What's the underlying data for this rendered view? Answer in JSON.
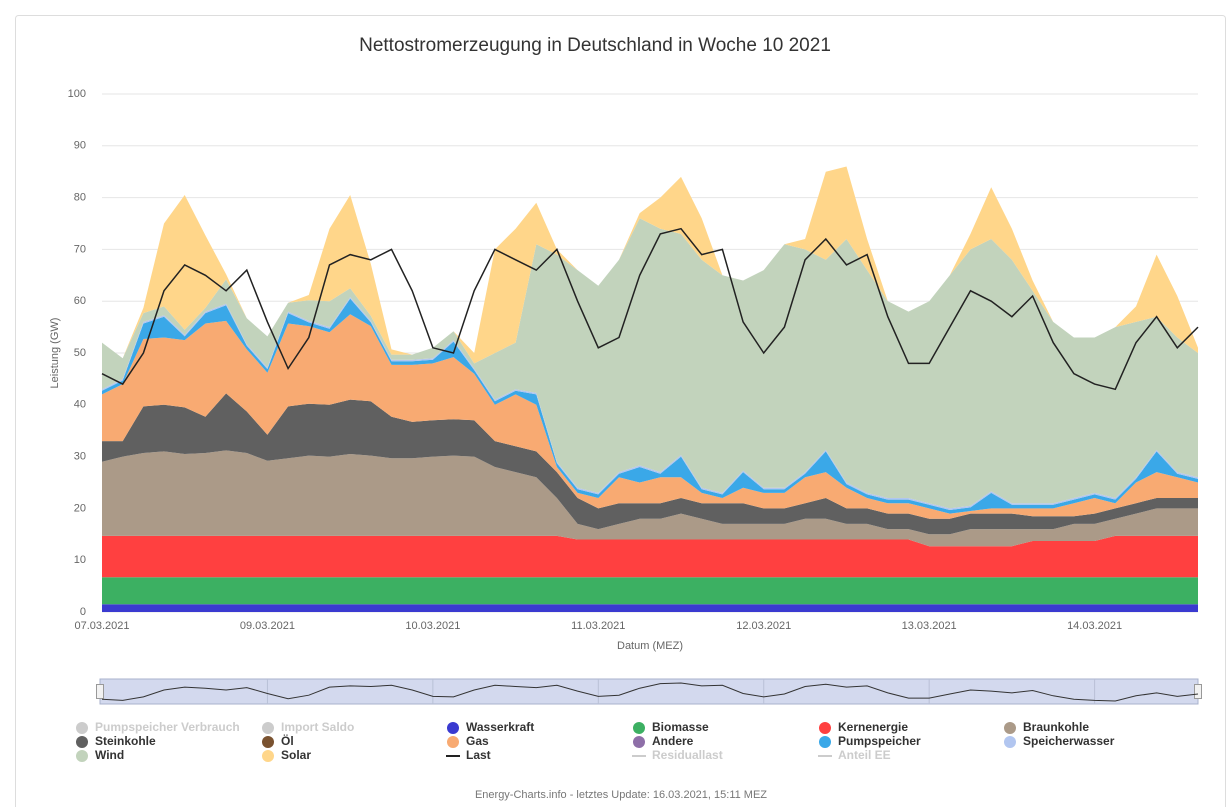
{
  "chart_data": {
    "type": "stacked_area",
    "title": "Nettostromerzeugung in Deutschland in Woche 10 2021",
    "y_label": "Leistung (GW)",
    "x_label": "Datum (MEZ)",
    "footer": "Energy-Charts.info - letztes Update: 16.03.2021, 15:11 MEZ",
    "ylim": [
      0,
      100
    ],
    "yticks": [
      0,
      10,
      20,
      30,
      40,
      50,
      60,
      70,
      80,
      90,
      100
    ],
    "grid": true,
    "categories": [
      "07.03.2021",
      null,
      null,
      null,
      null,
      null,
      null,
      null,
      "09.03.2021",
      null,
      null,
      null,
      null,
      null,
      null,
      null,
      "10.03.2021",
      null,
      null,
      null,
      null,
      null,
      null,
      null,
      "11.03.2021",
      null,
      null,
      null,
      null,
      null,
      null,
      null,
      "12.03.2021",
      null,
      null,
      null,
      null,
      null,
      null,
      null,
      "13.03.2021",
      null,
      null,
      null,
      null,
      null,
      null,
      null,
      "14.03.2021",
      null,
      null,
      null,
      null,
      null
    ],
    "series": [
      {
        "name": "Pumpspeicher Verbrauch",
        "color": "#cccccc",
        "visible": false
      },
      {
        "name": "Import Saldo",
        "color": "#cccccc",
        "visible": false
      },
      {
        "name": "Wasserkraft",
        "color": "#3a3ad0",
        "values": [
          1.5,
          1.5,
          1.5,
          1.5,
          1.5,
          1.5,
          1.5,
          1.5,
          1.5,
          1.5,
          1.5,
          1.5,
          1.5,
          1.5,
          1.5,
          1.5,
          1.5,
          1.5,
          1.5,
          1.5,
          1.5,
          1.5,
          1.5,
          1.5,
          1.5,
          1.5,
          1.5,
          1.5,
          1.5,
          1.5,
          1.5,
          1.5,
          1.5,
          1.5,
          1.5,
          1.5,
          1.5,
          1.5,
          1.5,
          1.5,
          1.5,
          1.5,
          1.5,
          1.5,
          1.5,
          1.5,
          1.5,
          1.5,
          1.5,
          1.5,
          1.5,
          1.5,
          1.5,
          1.5
        ]
      },
      {
        "name": "Biomasse",
        "color": "#3cb062",
        "values": [
          5.2,
          5.2,
          5.2,
          5.2,
          5.2,
          5.2,
          5.2,
          5.2,
          5.2,
          5.2,
          5.2,
          5.2,
          5.2,
          5.2,
          5.2,
          5.2,
          5.2,
          5.2,
          5.2,
          5.2,
          5.2,
          5.2,
          5.2,
          5.2,
          5.2,
          5.2,
          5.2,
          5.2,
          5.2,
          5.2,
          5.2,
          5.2,
          5.2,
          5.2,
          5.2,
          5.2,
          5.2,
          5.2,
          5.2,
          5.2,
          5.2,
          5.2,
          5.2,
          5.2,
          5.2,
          5.2,
          5.2,
          5.2,
          5.2,
          5.2,
          5.2,
          5.2,
          5.2,
          5.2
        ]
      },
      {
        "name": "Kernenergie",
        "color": "#ff4040",
        "values": [
          8,
          8,
          8,
          8,
          8,
          8,
          8,
          8,
          8,
          8,
          8,
          8,
          8,
          8,
          8,
          8,
          8,
          8,
          8,
          8,
          8,
          8,
          8,
          7.3,
          7.3,
          7.3,
          7.3,
          7.3,
          7.3,
          7.3,
          7.3,
          7.3,
          7.3,
          7.3,
          7.3,
          7.3,
          7.3,
          7.3,
          7.3,
          7.3,
          6,
          6,
          6,
          6,
          6,
          7,
          7,
          7,
          7,
          8,
          8,
          8,
          8,
          8
        ]
      },
      {
        "name": "Braunkohle",
        "color": "#ab9a88",
        "values": [
          14.3,
          15.3,
          16,
          16.3,
          15.8,
          16,
          16.5,
          16,
          14.5,
          15,
          15.5,
          15.3,
          15.8,
          15.5,
          15,
          15,
          15.3,
          15.5,
          15.3,
          13.3,
          12.3,
          11.3,
          7.3,
          3,
          2,
          3,
          4,
          4,
          5,
          4,
          3,
          3,
          3,
          3,
          4,
          4,
          3,
          3,
          2,
          2,
          2.3,
          2.3,
          3.3,
          3.3,
          3.3,
          2.3,
          2.3,
          3.3,
          3.3,
          3.3,
          4.3,
          5.3,
          5.3,
          5.3
        ]
      },
      {
        "name": "Steinkohle",
        "color": "#606060",
        "values": [
          4,
          3,
          9,
          9,
          9,
          7,
          11,
          8,
          5,
          10,
          10,
          10,
          10.5,
          10.5,
          8,
          7,
          7,
          7,
          7,
          5,
          5,
          5,
          5,
          5,
          4,
          4,
          3,
          3,
          3,
          3,
          4,
          4,
          3,
          3,
          3,
          4,
          3,
          3,
          3,
          3,
          3,
          3,
          3,
          3,
          3,
          2.5,
          2.5,
          1.5,
          2,
          2,
          2,
          2,
          2,
          2
        ]
      },
      {
        "name": "Öl",
        "color": "#7a5230"
      },
      {
        "name": "Gas",
        "color": "#f8aa72",
        "values": [
          9,
          11,
          13,
          13,
          13,
          18,
          14,
          12,
          12,
          16,
          15,
          14,
          16.5,
          14.5,
          10,
          11,
          11,
          12,
          9,
          7,
          10,
          9,
          1,
          1,
          2,
          5,
          4,
          5,
          4,
          2,
          1,
          3,
          3,
          3,
          5,
          5,
          4,
          2,
          2,
          2,
          2,
          1,
          0.5,
          1,
          1,
          1.5,
          1.5,
          2.5,
          3,
          1,
          4,
          5,
          4,
          3
        ]
      },
      {
        "name": "Andere",
        "color": "#8e6fa8"
      },
      {
        "name": "Pumpspeicher",
        "color": "#3aa8e8",
        "values": [
          0.7,
          0.7,
          3,
          4,
          0.7,
          2,
          3,
          0.7,
          0.7,
          2,
          0.7,
          0.7,
          3,
          0.7,
          0.7,
          0.7,
          0.7,
          3,
          0.7,
          0.7,
          0.7,
          2,
          0.7,
          0.7,
          0.7,
          0.7,
          3,
          0.7,
          4,
          0.7,
          0.7,
          3,
          0.7,
          0.7,
          0.7,
          4,
          0.7,
          0.7,
          0.7,
          0.7,
          0.7,
          0.7,
          0.7,
          3,
          0.7,
          0.7,
          0.7,
          0.7,
          0.7,
          0.7,
          0.7,
          4,
          0.7,
          0.7
        ]
      },
      {
        "name": "Speicherwasser",
        "color": "#b2c6f0",
        "values": [
          0.3,
          0.3,
          0.3,
          0.3,
          0.3,
          0.3,
          0.3,
          0.3,
          0.3,
          0.3,
          0.3,
          0.3,
          0.3,
          0.3,
          0.3,
          0.3,
          0.3,
          0.3,
          0.3,
          0.3,
          0.3,
          0.3,
          0.3,
          0.3,
          0.3,
          0.3,
          0.3,
          0.3,
          0.3,
          0.3,
          0.3,
          0.3,
          0.3,
          0.3,
          0.3,
          0.3,
          0.3,
          0.3,
          0.3,
          0.3,
          0.3,
          0.3,
          0.3,
          0.3,
          0.3,
          0.3,
          0.3,
          0.3,
          0.3,
          0.3,
          0.3,
          0.3,
          0.3,
          0.3
        ]
      },
      {
        "name": "Wind",
        "color": "#c2d3bc",
        "values": [
          9,
          4,
          1.7,
          1.7,
          1,
          0.7,
          4.7,
          5,
          6,
          1.7,
          4,
          5,
          1.7,
          1,
          1,
          1,
          2,
          1.7,
          1,
          9,
          9,
          28.7,
          40,
          42,
          40,
          41,
          47.7,
          47,
          42.7,
          44,
          42,
          36.7,
          42,
          47,
          43,
          36.7,
          47,
          43,
          38,
          36,
          39,
          45,
          49.5,
          48.7,
          47,
          41,
          35,
          31,
          30,
          33,
          30,
          25.7,
          26,
          24
        ]
      },
      {
        "name": "Solar",
        "color": "#ffd68a",
        "values": [
          0,
          0,
          1,
          16,
          26,
          14,
          1,
          0,
          0,
          0,
          1,
          14,
          18,
          10,
          1,
          0,
          0,
          0,
          2,
          20,
          22,
          8,
          1,
          0,
          0,
          0,
          1,
          6,
          11,
          8,
          0,
          0,
          0,
          0,
          2,
          17,
          14,
          6,
          0,
          0,
          0,
          0,
          3,
          10,
          6,
          2,
          0,
          0,
          0,
          0,
          3,
          12,
          8,
          1
        ]
      },
      {
        "name": "Last",
        "color": "#222222",
        "type": "line",
        "values": [
          46,
          44,
          50,
          62,
          67,
          65,
          62,
          66,
          56,
          47,
          53,
          67,
          69,
          68,
          70,
          62,
          51,
          50,
          62,
          70,
          68,
          66,
          70,
          60,
          51,
          53,
          65,
          73,
          74,
          69,
          70,
          56,
          50,
          55,
          68,
          72,
          67,
          69,
          57,
          48,
          48,
          55,
          62,
          60,
          57,
          61,
          52,
          46,
          44,
          43,
          52,
          57,
          51,
          55
        ]
      },
      {
        "name": "Residuallast",
        "color": "#cccccc",
        "type": "line",
        "visible": false
      },
      {
        "name": "Anteil EE",
        "color": "#cccccc",
        "type": "line",
        "visible": false
      }
    ]
  }
}
